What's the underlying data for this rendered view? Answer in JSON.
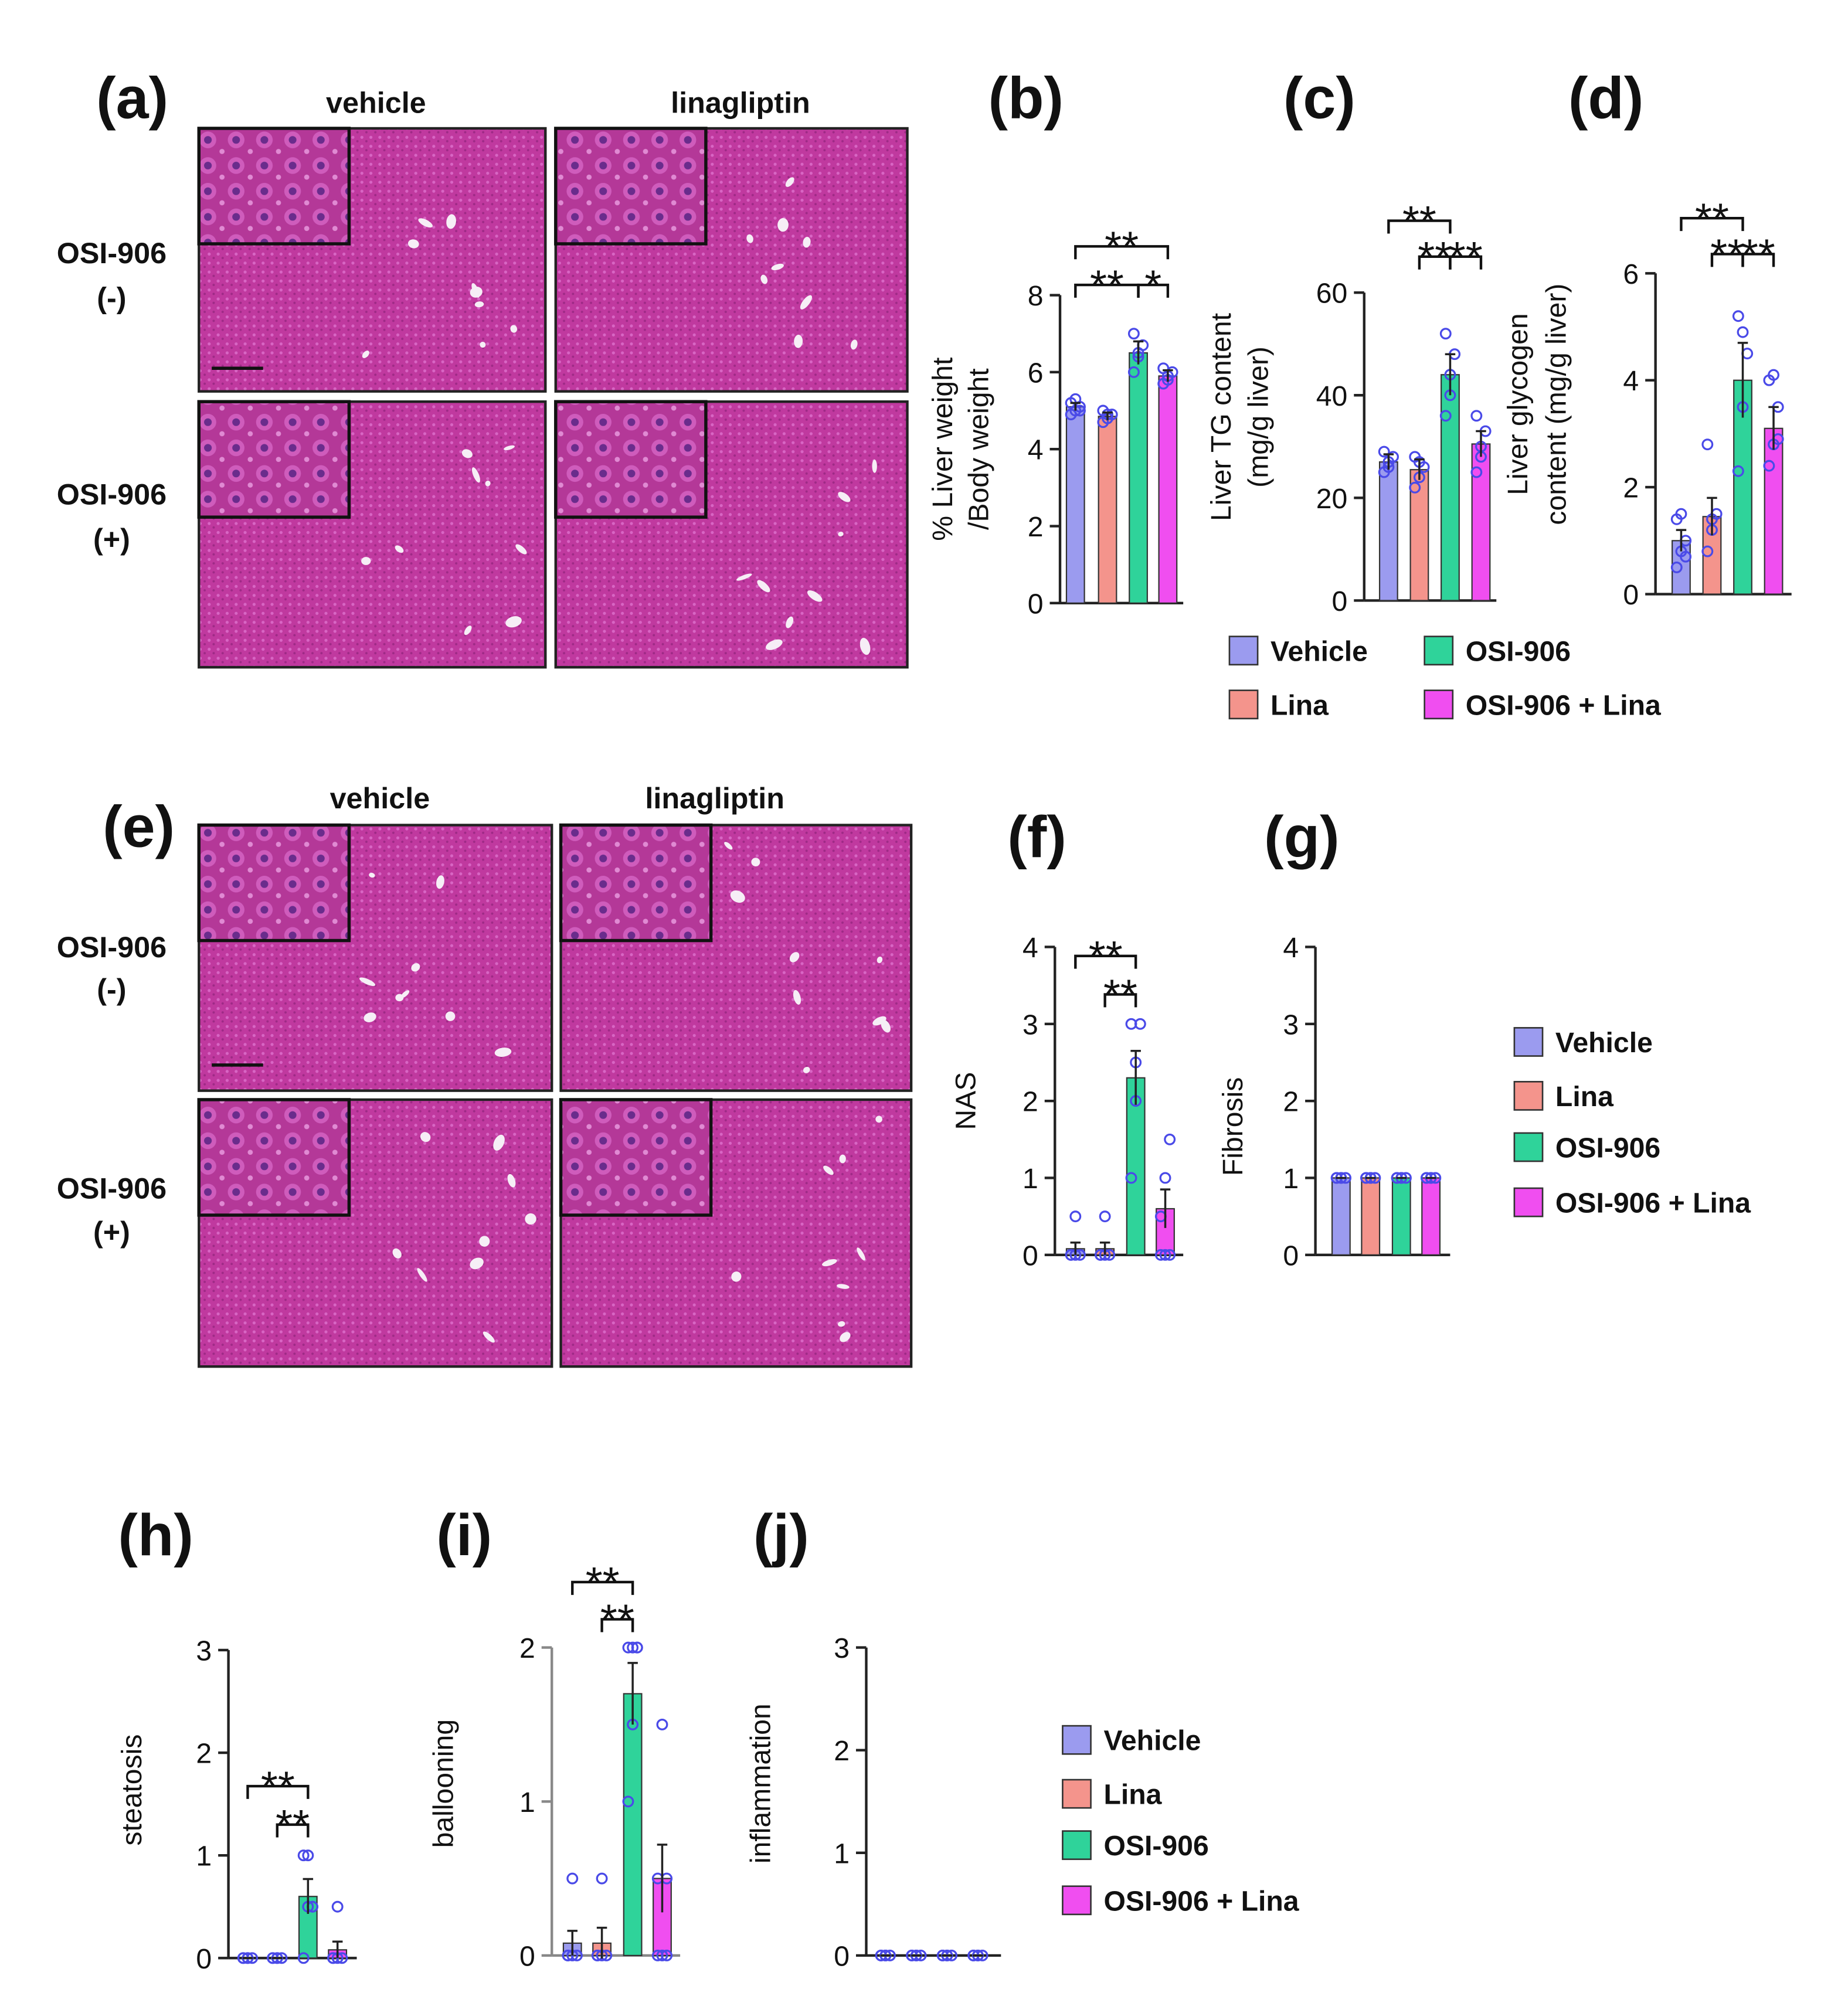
{
  "micrographs": [
    {
      "label": "(a)",
      "columns": [
        "vehicle",
        "linagliptin"
      ],
      "rows": [
        [
          "OSI-906",
          "(-)"
        ],
        [
          "OSI-906",
          "(+)"
        ]
      ]
    },
    {
      "label": "(e)",
      "columns": [
        "vehicle",
        "linagliptin"
      ],
      "rows": [
        [
          "OSI-906",
          "(-)"
        ],
        [
          "OSI-906",
          "(+)"
        ]
      ]
    }
  ],
  "legends": [
    {
      "items": [
        {
          "name": "Vehicle",
          "color": "#9b9bef"
        },
        {
          "name": "Lina",
          "color": "#f4948c"
        },
        {
          "name": "OSI-906",
          "color": "#2fd39a"
        },
        {
          "name": "OSI-906 + Lina",
          "color": "#f04ef0"
        }
      ]
    },
    {
      "items": [
        {
          "name": "Vehicle",
          "color": "#9b9bef"
        },
        {
          "name": "Lina",
          "color": "#f4948c"
        },
        {
          "name": "OSI-906",
          "color": "#2fd39a"
        },
        {
          "name": "OSI-906 + Lina",
          "color": "#f04ef0"
        }
      ]
    },
    {
      "items": [
        {
          "name": "Vehicle",
          "color": "#9b9bef"
        },
        {
          "name": "Lina",
          "color": "#f4948c"
        },
        {
          "name": "OSI-906",
          "color": "#2fd39a"
        },
        {
          "name": "OSI-906 + Lina",
          "color": "#f04ef0"
        }
      ]
    }
  ],
  "chart_data": [
    {
      "type": "bar",
      "label": "(b)",
      "ylabel": [
        "% Liver weight",
        "/Body weight"
      ],
      "colors": [
        "#9b9bef",
        "#f4948c",
        "#2fd39a",
        "#f04ef0"
      ],
      "values": [
        5.1,
        4.85,
        6.5,
        5.9
      ],
      "errors": [
        0.1,
        0.1,
        0.3,
        0.15
      ],
      "points": [
        [
          4.9,
          5.0,
          5.1,
          5.2,
          5.3,
          5.0
        ],
        [
          4.7,
          4.8,
          4.9,
          5.0,
          4.9
        ],
        [
          6.0,
          6.4,
          6.7,
          7.0,
          6.5
        ],
        [
          5.7,
          5.8,
          6.0,
          6.1,
          5.9
        ]
      ],
      "ylim": [
        0,
        8
      ],
      "yticks": [
        0,
        2,
        4,
        6,
        8
      ],
      "annotations": [
        "**",
        "**",
        "*"
      ]
    },
    {
      "type": "bar",
      "label": "(c)",
      "ylabel": [
        "Liver TG content",
        "(mg/g liver)"
      ],
      "colors": [
        "#9b9bef",
        "#f4948c",
        "#2fd39a",
        "#f04ef0"
      ],
      "values": [
        27,
        25.5,
        44,
        30.5
      ],
      "errors": [
        1.5,
        2,
        4,
        2.5
      ],
      "points": [
        [
          25,
          26,
          28,
          29,
          27
        ],
        [
          22,
          24,
          26,
          28,
          27
        ],
        [
          36,
          40,
          48,
          52,
          44
        ],
        [
          25,
          28,
          33,
          36,
          30
        ]
      ],
      "ylim": [
        0,
        60
      ],
      "yticks": [
        0,
        20,
        40,
        60
      ],
      "annotations": [
        "**",
        "**",
        "**"
      ]
    },
    {
      "type": "bar",
      "label": "(d)",
      "ylabel": [
        "Liver glycogen",
        "content (mg/g liver)"
      ],
      "colors": [
        "#9b9bef",
        "#f4948c",
        "#2fd39a",
        "#f04ef0"
      ],
      "values": [
        1.0,
        1.45,
        4.0,
        3.1
      ],
      "errors": [
        0.2,
        0.35,
        0.7,
        0.4
      ],
      "points": [
        [
          0.5,
          0.8,
          1.0,
          1.4,
          1.5,
          0.7
        ],
        [
          0.8,
          1.2,
          1.5,
          2.8,
          1.4
        ],
        [
          2.3,
          3.5,
          4.5,
          5.2,
          4.9
        ],
        [
          2.4,
          2.8,
          3.5,
          4.0,
          4.1,
          2.9
        ]
      ],
      "ylim": [
        0,
        6
      ],
      "yticks": [
        0,
        2,
        4,
        6
      ],
      "annotations": [
        "**",
        "**",
        "**"
      ]
    },
    {
      "type": "bar",
      "label": "(f)",
      "ylabel": [
        "NAS"
      ],
      "colors": [
        "#9b9bef",
        "#f4948c",
        "#2fd39a",
        "#f04ef0"
      ],
      "values": [
        0.08,
        0.08,
        2.3,
        0.6
      ],
      "errors": [
        0.08,
        0.08,
        0.35,
        0.25
      ],
      "points": [
        [
          0,
          0,
          0,
          0,
          0.5
        ],
        [
          0,
          0,
          0,
          0,
          0.5
        ],
        [
          1,
          2,
          3,
          3,
          2.5
        ],
        [
          0,
          0,
          0,
          0.5,
          1,
          1.5
        ]
      ],
      "ylim": [
        0,
        4
      ],
      "yticks": [
        0,
        1,
        2,
        3,
        4
      ],
      "annotations": [
        "**",
        "**"
      ]
    },
    {
      "type": "bar",
      "label": "(g)",
      "ylabel": [
        "Fibrosis"
      ],
      "colors": [
        "#9b9bef",
        "#f4948c",
        "#2fd39a",
        "#f04ef0"
      ],
      "values": [
        1,
        1,
        1,
        1
      ],
      "errors": [
        0,
        0,
        0,
        0
      ],
      "points": [
        [
          1,
          1,
          1,
          1,
          1
        ],
        [
          1,
          1,
          1,
          1,
          1
        ],
        [
          1,
          1,
          1,
          1,
          1
        ],
        [
          1,
          1,
          1,
          1,
          1
        ]
      ],
      "ylim": [
        0,
        4
      ],
      "yticks": [
        0,
        1,
        2,
        3,
        4
      ],
      "annotations": []
    },
    {
      "type": "bar",
      "label": "(h)",
      "ylabel": [
        "steatosis"
      ],
      "colors": [
        "#9b9bef",
        "#f4948c",
        "#2fd39a",
        "#f04ef0"
      ],
      "values": [
        0,
        0,
        0.6,
        0.08
      ],
      "errors": [
        0,
        0,
        0.17,
        0.08
      ],
      "points": [
        [
          0,
          0,
          0,
          0,
          0
        ],
        [
          0,
          0,
          0,
          0,
          0
        ],
        [
          0,
          0.5,
          0.5,
          1,
          1,
          0.5
        ],
        [
          0,
          0,
          0,
          0,
          0.5
        ]
      ],
      "ylim": [
        0,
        3
      ],
      "yticks": [
        0,
        1,
        2,
        3
      ],
      "annotations": [
        "**",
        "**"
      ]
    },
    {
      "type": "bar",
      "label": "(i)",
      "ylabel": [
        "ballooning"
      ],
      "colors": [
        "#9b9bef",
        "#f4948c",
        "#2fd39a",
        "#f04ef0"
      ],
      "values": [
        0.08,
        0.08,
        1.7,
        0.5
      ],
      "errors": [
        0.08,
        0.1,
        0.2,
        0.22
      ],
      "points": [
        [
          0,
          0,
          0,
          0,
          0.5
        ],
        [
          0,
          0,
          0,
          0,
          0.5
        ],
        [
          1,
          1.5,
          2,
          2,
          2,
          2
        ],
        [
          0,
          0,
          0.5,
          0.5,
          1.5,
          0
        ]
      ],
      "ylim": [
        0,
        2
      ],
      "yticks": [
        0,
        1,
        2
      ],
      "annotations": [
        "**",
        "**"
      ]
    },
    {
      "type": "bar",
      "label": "(j)",
      "ylabel": [
        "inflammation"
      ],
      "colors": [
        "#9b9bef",
        "#f4948c",
        "#2fd39a",
        "#f04ef0"
      ],
      "values": [
        0,
        0,
        0,
        0
      ],
      "errors": [
        0,
        0,
        0,
        0
      ],
      "points": [
        [
          0,
          0,
          0,
          0,
          0
        ],
        [
          0,
          0,
          0,
          0,
          0
        ],
        [
          0,
          0,
          0,
          0,
          0
        ],
        [
          0,
          0,
          0,
          0,
          0
        ]
      ],
      "ylim": [
        0,
        3
      ],
      "yticks": [
        0,
        1,
        2,
        3
      ],
      "annotations": []
    }
  ]
}
